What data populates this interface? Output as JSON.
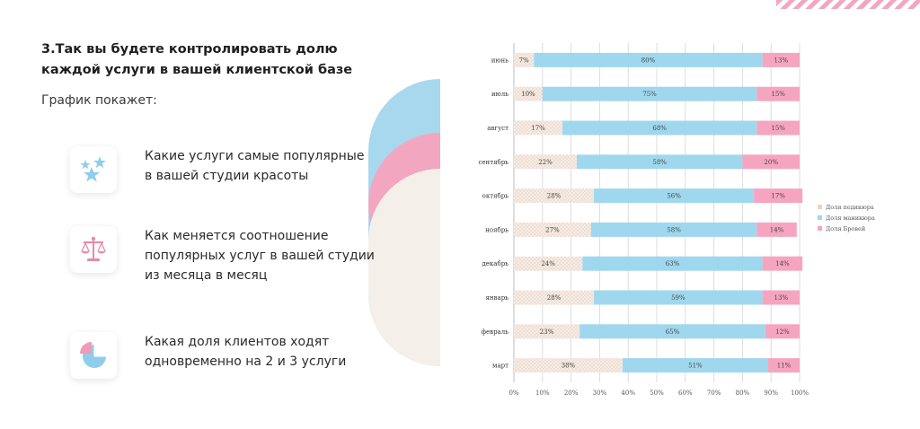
{
  "page": {
    "heading": "3.Так вы будете контролировать долю каждой услуги в вашей клиентской базе",
    "subheading": "График покажет:",
    "features": [
      {
        "text": "Какие услуги самые популярные\nв вашей студии красоты",
        "icon": "stars-icon"
      },
      {
        "text": "Как меняется соотношение\nпопулярных услуг в вашей студии\nиз месяца в месяц",
        "icon": "scales-icon"
      },
      {
        "text": "Какая доля клиентов ходят\nодновременно на 2 и 3 услуги",
        "icon": "pie-chart-icon"
      }
    ]
  },
  "chart_data": {
    "type": "bar",
    "orientation": "horizontal",
    "stacked": true,
    "categories": [
      "июнь",
      "июль",
      "август",
      "сентябрь",
      "октябрь",
      "ноябрь",
      "декабрь",
      "январь",
      "февраль",
      "март"
    ],
    "series": [
      {
        "name": "Доля педикюра",
        "values": [
          7,
          10,
          17,
          22,
          28,
          27,
          24,
          28,
          23,
          38
        ],
        "color": "#f3e6dd"
      },
      {
        "name": "Доля маникюра",
        "values": [
          80,
          75,
          68,
          58,
          56,
          58,
          63,
          59,
          65,
          51
        ],
        "color": "#9fd8ee"
      },
      {
        "name": "Доля Бровей",
        "values": [
          13,
          15,
          15,
          20,
          17,
          14,
          14,
          13,
          12,
          11
        ],
        "color": "#f6a5c0"
      }
    ],
    "xlim": [
      0,
      100
    ],
    "x_ticks": [
      "0%",
      "10%",
      "20%",
      "30%",
      "40%",
      "50%",
      "60%",
      "70%",
      "80%",
      "90%",
      "100%"
    ],
    "value_suffix": "%",
    "grid": true,
    "legend_position": "right"
  }
}
